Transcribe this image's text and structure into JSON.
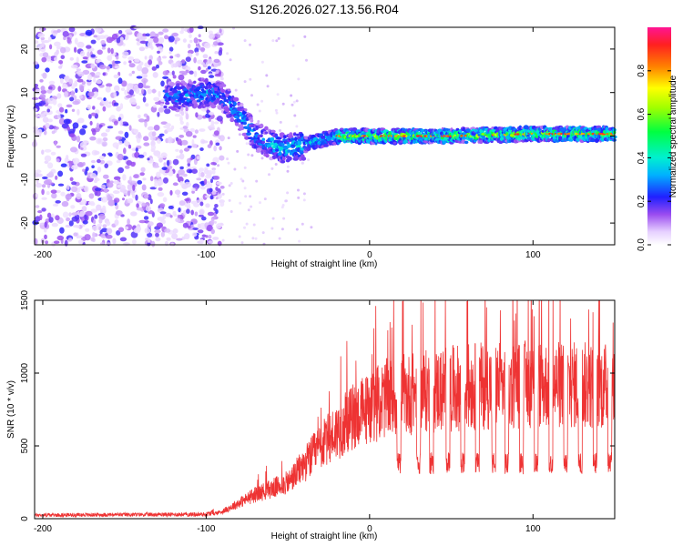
{
  "title": "S126.2026.027.13.56.R04",
  "spectrogram": {
    "type": "heatmap",
    "xlabel": "Height of straight line (km)",
    "ylabel": "Frequency (Hz)",
    "xlim": [
      -205,
      150
    ],
    "ylim": [
      -25,
      25
    ],
    "xticks": [
      -200,
      -100,
      0,
      100
    ],
    "yticks": [
      -20,
      -10,
      0,
      10,
      20
    ],
    "xtick_labels": [
      "-200",
      "-100",
      "0",
      "100"
    ],
    "ytick_labels": [
      "-20",
      "-10",
      "0",
      "10",
      "20"
    ],
    "colorbar_label": "Normalized spectral amplitude",
    "colorbar_ticks": [
      "0.0",
      "0.2",
      "0.4",
      "0.6",
      "0.8"
    ],
    "colorbar_tick_values": [
      0.0,
      0.2,
      0.4,
      0.6,
      0.8
    ],
    "colorbar_range": [
      0,
      1
    ],
    "ridge": [
      {
        "x": -120,
        "y": 9
      },
      {
        "x": -100,
        "y": 10
      },
      {
        "x": -90,
        "y": 9
      },
      {
        "x": -80,
        "y": 5
      },
      {
        "x": -70,
        "y": 0
      },
      {
        "x": -60,
        "y": -2
      },
      {
        "x": -50,
        "y": -3
      },
      {
        "x": -40,
        "y": -2
      },
      {
        "x": -30,
        "y": -1
      },
      {
        "x": -20,
        "y": 0
      },
      {
        "x": 0,
        "y": 0
      },
      {
        "x": 50,
        "y": 0
      },
      {
        "x": 100,
        "y": 0.5
      },
      {
        "x": 150,
        "y": 0.5
      }
    ]
  },
  "snr": {
    "type": "line",
    "xlabel": "Height of straight line (km)",
    "ylabel": "SNR (10 * v/v)",
    "xlim": [
      -205,
      150
    ],
    "ylim": [
      0,
      1500
    ],
    "xticks": [
      -200,
      -100,
      0,
      100
    ],
    "yticks": [
      0,
      500,
      1000,
      1500
    ],
    "xtick_labels": [
      "-200",
      "-100",
      "0",
      "100"
    ],
    "ytick_labels": [
      "0",
      "500",
      "1000",
      "1500"
    ],
    "color": "#ee3333",
    "envelope": [
      {
        "x": -205,
        "y": 25
      },
      {
        "x": -100,
        "y": 30
      },
      {
        "x": -90,
        "y": 60
      },
      {
        "x": -70,
        "y": 200
      },
      {
        "x": -50,
        "y": 300
      },
      {
        "x": -30,
        "y": 600
      },
      {
        "x": -10,
        "y": 850
      },
      {
        "x": 10,
        "y": 1000
      },
      {
        "x": 30,
        "y": 1050
      },
      {
        "x": 60,
        "y": 1100
      },
      {
        "x": 100,
        "y": 1120
      },
      {
        "x": 150,
        "y": 1100
      }
    ],
    "dip_positions": [
      18,
      30,
      38,
      48,
      57,
      66,
      76,
      84,
      93,
      102,
      111,
      120,
      129,
      138,
      147
    ],
    "dip_level": 380
  }
}
